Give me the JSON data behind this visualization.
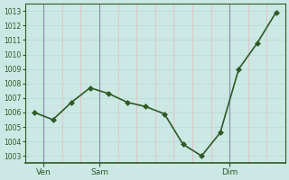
{
  "y_values": [
    1006,
    1005.5,
    1006.7,
    1007.7,
    1007.3,
    1006.7,
    1006.4,
    1005.9,
    1003.8,
    1003.0,
    1004.6,
    1009.0,
    1010.8,
    1012.9
  ],
  "x_tick_labels": [
    "Ven",
    "Sam",
    "Dim"
  ],
  "y_min": 1003,
  "y_max": 1013,
  "bg_color": "#cce8e4",
  "hgrid_color": "#b8d8d4",
  "vgrid_color": "#e8b8b8",
  "vline_color": "#8888aa",
  "line_color": "#2d5a27",
  "marker_color": "#2d5a27",
  "line_width": 1.2,
  "marker_size": 3.0,
  "ylabel_fontsize": 5.5,
  "xlabel_fontsize": 6.5
}
